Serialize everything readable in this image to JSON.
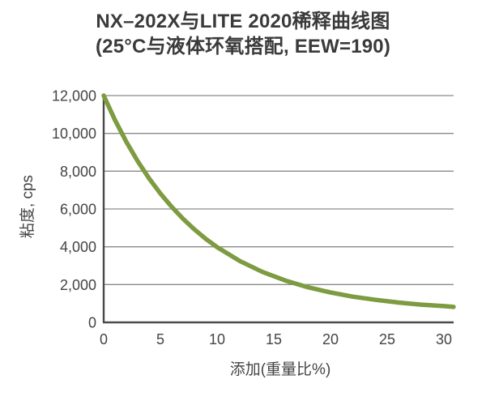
{
  "page": {
    "background": "#ffffff"
  },
  "chart_data": {
    "type": "line",
    "title": "NX–202X与LITE 2020稀释曲线图",
    "subtitle": "(25°C与液体环氧搭配, EEW=190)",
    "xlabel": "添加(重量比%)",
    "ylabel": "粘度, cps",
    "xlim": [
      0,
      31
    ],
    "ylim": [
      0,
      12000
    ],
    "x_ticks": [
      0,
      5,
      10,
      15,
      20,
      25,
      30
    ],
    "x_tick_labels": [
      "0",
      "5",
      "10",
      "15",
      "20",
      "25",
      "30"
    ],
    "y_ticks": [
      0,
      2000,
      4000,
      6000,
      8000,
      10000,
      12000
    ],
    "y_tick_labels": [
      "0",
      "2,000",
      "4,000",
      "6,000",
      "8,000",
      "10,000",
      "12,000"
    ],
    "grid": "horizontal",
    "legend_position": "none",
    "colors": {
      "line": "#7d9b40",
      "grid": "#8a8a8a",
      "axis": "#4a4a4a",
      "text": "#3a3a3a",
      "tick_text": "#444444"
    },
    "series": [
      {
        "name": "NX-202X",
        "x": [
          0,
          1,
          2,
          3,
          4,
          5,
          6,
          7,
          8,
          9,
          10,
          12,
          14,
          16,
          18,
          20,
          22,
          24,
          26,
          28,
          30,
          31
        ],
        "y": [
          12000,
          10700,
          9550,
          8530,
          7620,
          6820,
          6110,
          5480,
          4920,
          4420,
          3980,
          3250,
          2670,
          2220,
          1860,
          1580,
          1360,
          1190,
          1050,
          940,
          860,
          820
        ]
      }
    ]
  }
}
